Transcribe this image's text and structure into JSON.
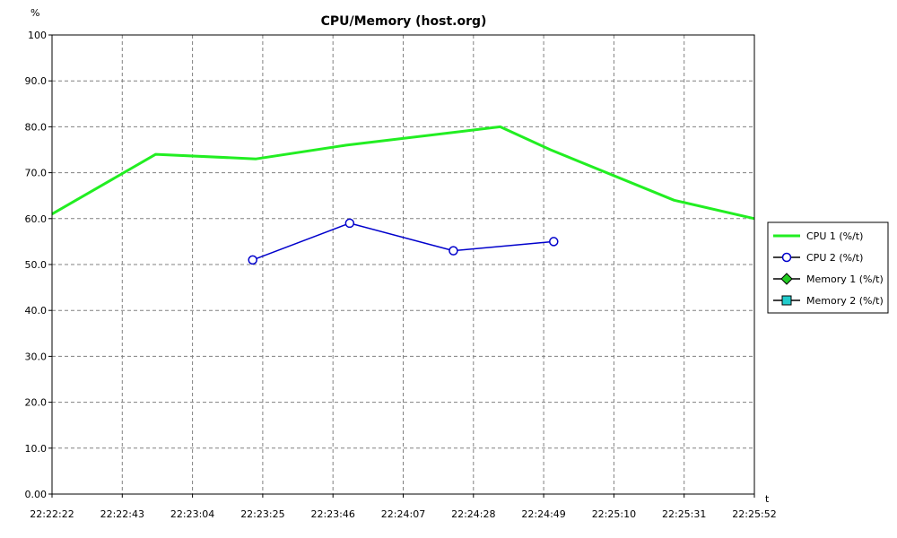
{
  "chart_data": {
    "type": "line",
    "title": "CPU/Memory (host.org)",
    "ylabel": "%",
    "xlabel": "t",
    "ylim": [
      0,
      100
    ],
    "y_ticks": [
      "0.00",
      "10.0",
      "20.0",
      "30.0",
      "40.0",
      "50.0",
      "60.0",
      "70.0",
      "80.0",
      "90.0",
      "100"
    ],
    "y_tick_values": [
      0,
      10,
      20,
      30,
      40,
      50,
      60,
      70,
      80,
      90,
      100
    ],
    "x_ticks": [
      "22:22:22",
      "22:22:43",
      "22:23:04",
      "22:23:25",
      "22:23:46",
      "22:24:07",
      "22:24:28",
      "22:24:49",
      "22:25:10",
      "22:25:31",
      "22:25:52"
    ],
    "xlim": [
      "22:22:22",
      "22:25:52"
    ],
    "grid": true,
    "legend": "right",
    "series": [
      {
        "name": "CPU 1 (%/t)",
        "color": "#22ee22",
        "marker": "none",
        "x": [
          "22:22:22",
          "22:22:53",
          "22:23:23",
          "22:23:50",
          "22:24:36",
          "22:24:51",
          "22:25:28",
          "22:25:52"
        ],
        "values": [
          61,
          74,
          73,
          76,
          80,
          75,
          64,
          60
        ]
      },
      {
        "name": "CPU 2 (%/t)",
        "color": "#0000cc",
        "marker": "circle",
        "x": [
          "22:23:22",
          "22:23:51",
          "22:24:22",
          "22:24:52"
        ],
        "values": [
          51,
          59,
          53,
          55
        ]
      },
      {
        "name": "Memory 1 (%/t)",
        "color": "#22cc22",
        "marker": "diamond",
        "x": [],
        "values": []
      },
      {
        "name": "Memory 2 (%/t)",
        "color": "#22cccc",
        "marker": "square",
        "x": [],
        "values": []
      }
    ]
  }
}
